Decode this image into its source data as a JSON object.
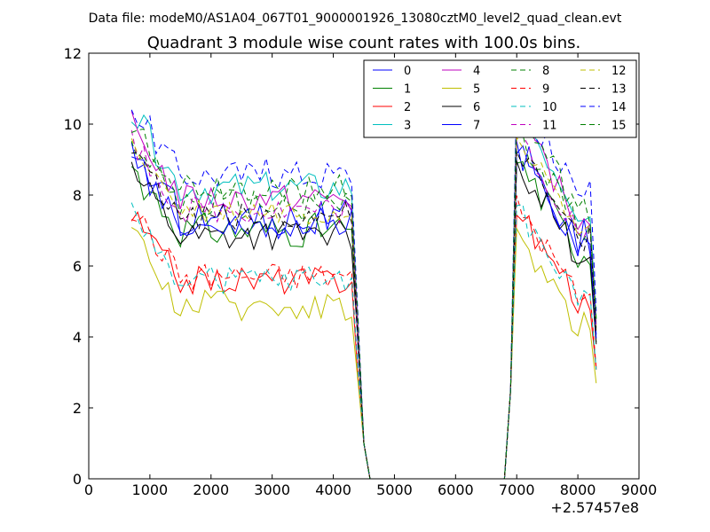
{
  "chart_data": {
    "type": "line",
    "header": "Data file: modeM0/AS1A04_067T01_9000001926_13080cztM0_level2_quad_clean.evt",
    "title": "Quadrant 3 module wise count rates with 100.0s bins.",
    "xlabel": "",
    "ylabel": "",
    "x_offset_label": "+2.57457e8",
    "xlim": [
      0,
      9000
    ],
    "ylim": [
      0,
      12
    ],
    "xticks": [
      0,
      1000,
      2000,
      3000,
      4000,
      5000,
      6000,
      7000,
      8000,
      9000
    ],
    "yticks": [
      0,
      2,
      4,
      6,
      8,
      10,
      12
    ],
    "grid": false,
    "legend_position": "top-right",
    "x_range_sampled": [
      700,
      8300
    ],
    "x_step": 100,
    "series": [
      {
        "name": "0",
        "color": "#0000ff",
        "dash": "solid",
        "base": 7.4,
        "peak": 9.5,
        "amp": 0.55
      },
      {
        "name": "1",
        "color": "#008000",
        "dash": "solid",
        "base": 7.0,
        "peak": 9.0,
        "amp": 0.5
      },
      {
        "name": "2",
        "color": "#ff0000",
        "dash": "solid",
        "base": 5.6,
        "peak": 7.6,
        "amp": 0.4
      },
      {
        "name": "3",
        "color": "#00bfbf",
        "dash": "solid",
        "base": 8.2,
        "peak": 10.6,
        "amp": 0.45
      },
      {
        "name": "4",
        "color": "#bf00bf",
        "dash": "solid",
        "base": 7.9,
        "peak": 10.2,
        "amp": 0.4
      },
      {
        "name": "5",
        "color": "#bfbf00",
        "dash": "solid",
        "base": 4.9,
        "peak": 7.0,
        "amp": 0.45
      },
      {
        "name": "6",
        "color": "#000000",
        "dash": "solid",
        "base": 6.9,
        "peak": 9.0,
        "amp": 0.45
      },
      {
        "name": "7",
        "color": "#0000ff",
        "dash": "solid",
        "base": 7.2,
        "peak": 9.3,
        "amp": 0.45
      },
      {
        "name": "8",
        "color": "#008000",
        "dash": "dashed",
        "base": 7.7,
        "peak": 9.9,
        "amp": 0.45
      },
      {
        "name": "9",
        "color": "#ff0000",
        "dash": "dashed",
        "base": 5.7,
        "peak": 7.8,
        "amp": 0.4
      },
      {
        "name": "10",
        "color": "#00bfbf",
        "dash": "dashed",
        "base": 5.6,
        "peak": 7.6,
        "amp": 0.4
      },
      {
        "name": "11",
        "color": "#bf00bf",
        "dash": "dashed",
        "base": 7.6,
        "peak": 9.8,
        "amp": 0.4
      },
      {
        "name": "12",
        "color": "#bfbf00",
        "dash": "dashed",
        "base": 7.5,
        "peak": 9.7,
        "amp": 0.4
      },
      {
        "name": "13",
        "color": "#000000",
        "dash": "dashed",
        "base": 7.4,
        "peak": 9.4,
        "amp": 0.4
      },
      {
        "name": "14",
        "color": "#0000ff",
        "dash": "dashed",
        "base": 8.6,
        "peak": 10.8,
        "amp": 0.45
      },
      {
        "name": "15",
        "color": "#008000",
        "dash": "dashed",
        "base": 8.2,
        "peak": 10.3,
        "amp": 0.45
      }
    ]
  }
}
